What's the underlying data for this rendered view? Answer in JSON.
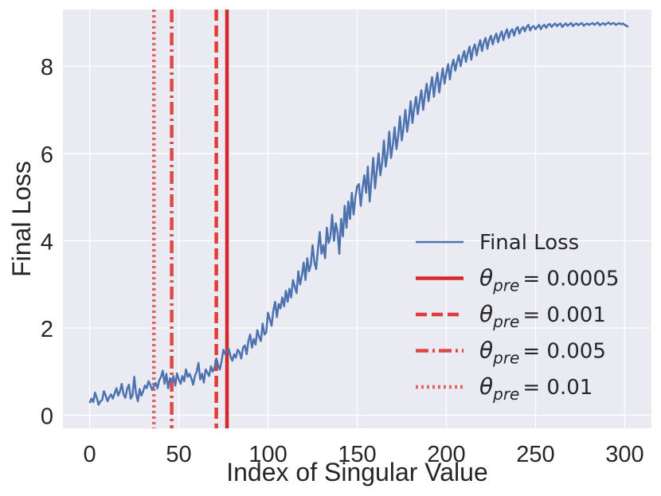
{
  "chart_data": {
    "type": "line",
    "xlabel": "Index of Singular Value",
    "ylabel": "Final Loss",
    "xlim": [
      -15,
      315
    ],
    "ylim": [
      -0.3,
      9.3
    ],
    "xticks": [
      0,
      50,
      100,
      150,
      200,
      250,
      300
    ],
    "yticks": [
      0,
      2,
      4,
      6,
      8
    ],
    "grid": true,
    "legend_position": "lower-right",
    "series": [
      {
        "name": "Final Loss",
        "color": "#4C72B0",
        "style": "solid",
        "x_start": 0,
        "x_step": 1,
        "values": [
          0.28,
          0.38,
          0.3,
          0.52,
          0.4,
          0.24,
          0.32,
          0.35,
          0.55,
          0.45,
          0.32,
          0.42,
          0.48,
          0.38,
          0.5,
          0.62,
          0.45,
          0.55,
          0.72,
          0.48,
          0.4,
          0.6,
          0.7,
          0.38,
          0.45,
          0.88,
          0.5,
          0.32,
          0.6,
          0.45,
          0.55,
          0.68,
          0.62,
          0.78,
          0.7,
          0.58,
          0.66,
          0.74,
          0.62,
          0.8,
          0.88,
          1.02,
          0.72,
          0.95,
          0.62,
          0.85,
          0.78,
          0.9,
          0.68,
          0.96,
          0.82,
          0.72,
          0.9,
          0.78,
          1.05,
          0.88,
          0.95,
          0.85,
          0.7,
          0.9,
          1.0,
          1.2,
          0.82,
          0.95,
          0.75,
          1.05,
          0.98,
          0.9,
          1.12,
          1.0,
          1.08,
          1.3,
          1.15,
          1.05,
          1.25,
          1.5,
          1.4,
          1.45,
          1.52,
          1.35,
          1.25,
          1.4,
          1.32,
          1.5,
          1.45,
          1.3,
          1.55,
          1.6,
          1.4,
          1.7,
          1.85,
          1.55,
          1.75,
          1.62,
          1.95,
          1.8,
          1.7,
          2.1,
          1.85,
          1.9,
          2.35,
          2.2,
          2.05,
          2.4,
          2.6,
          2.25,
          2.55,
          2.45,
          2.7,
          2.5,
          2.85,
          2.6,
          2.9,
          2.7,
          3.1,
          2.95,
          2.8,
          3.3,
          3.0,
          3.2,
          3.5,
          3.1,
          3.6,
          3.3,
          3.45,
          3.9,
          3.5,
          3.35,
          3.8,
          4.2,
          3.7,
          3.9,
          3.6,
          4.3,
          3.95,
          4.1,
          4.6,
          4.0,
          4.4,
          4.2,
          3.7,
          4.5,
          4.1,
          4.8,
          4.3,
          4.9,
          4.5,
          5.1,
          4.6,
          5.0,
          5.25,
          5.3,
          4.8,
          5.2,
          5.5,
          5.1,
          5.7,
          4.9,
          5.4,
          5.9,
          5.2,
          5.6,
          6.0,
          5.5,
          5.8,
          6.3,
          5.7,
          6.0,
          6.5,
          5.9,
          6.2,
          6.6,
          6.1,
          6.4,
          6.85,
          6.3,
          6.6,
          7.0,
          6.5,
          6.8,
          7.2,
          6.7,
          7.05,
          7.3,
          6.9,
          7.2,
          7.45,
          7.0,
          7.35,
          7.6,
          7.2,
          7.5,
          7.75,
          7.3,
          7.6,
          7.85,
          7.4,
          7.7,
          7.95,
          7.6,
          7.85,
          8.05,
          7.7,
          8.0,
          8.15,
          7.9,
          8.1,
          8.25,
          8.0,
          8.2,
          8.35,
          8.1,
          8.3,
          8.45,
          8.15,
          8.4,
          8.5,
          8.25,
          8.45,
          8.6,
          8.35,
          8.55,
          8.65,
          8.4,
          8.6,
          8.7,
          8.5,
          8.65,
          8.75,
          8.55,
          8.7,
          8.8,
          8.6,
          8.75,
          8.85,
          8.65,
          8.8,
          8.85,
          8.7,
          8.85,
          8.9,
          8.75,
          8.85,
          8.9,
          8.8,
          8.9,
          8.95,
          8.82,
          8.9,
          8.92,
          8.85,
          8.9,
          8.95,
          8.85,
          8.92,
          8.95,
          8.88,
          8.95,
          8.97,
          8.9,
          8.95,
          8.98,
          8.92,
          8.96,
          8.98,
          8.9,
          8.95,
          8.98,
          8.93,
          8.96,
          8.99,
          8.92,
          8.96,
          8.98,
          8.94,
          8.97,
          8.99,
          8.93,
          8.96,
          8.98,
          8.95,
          8.97,
          8.99,
          8.95,
          8.98,
          9.0,
          8.94,
          8.97,
          8.99,
          8.95,
          8.98,
          9.0,
          8.96,
          8.98,
          8.99,
          8.95,
          8.97,
          8.99,
          8.96,
          8.98,
          8.95,
          8.93,
          8.9
        ]
      }
    ],
    "vlines": [
      {
        "x": 77,
        "label_prefix": "θ",
        "label_sub": "pre",
        "label_value": "= 0.0005",
        "style": "solid",
        "color": "#D62728"
      },
      {
        "x": 71,
        "label_prefix": "θ",
        "label_sub": "pre",
        "label_value": "= 0.001",
        "style": "dashed",
        "color": "#E03C3C"
      },
      {
        "x": 46,
        "label_prefix": "θ",
        "label_sub": "pre",
        "label_value": "= 0.005",
        "style": "dashdot",
        "color": "#E04848"
      },
      {
        "x": 36,
        "label_prefix": "θ",
        "label_sub": "pre",
        "label_value": "= 0.01",
        "style": "dotted",
        "color": "#E86060"
      }
    ]
  },
  "colors": {
    "plot_background": "#EAEAF2",
    "grid": "#FFFFFF",
    "text": "#262626"
  }
}
